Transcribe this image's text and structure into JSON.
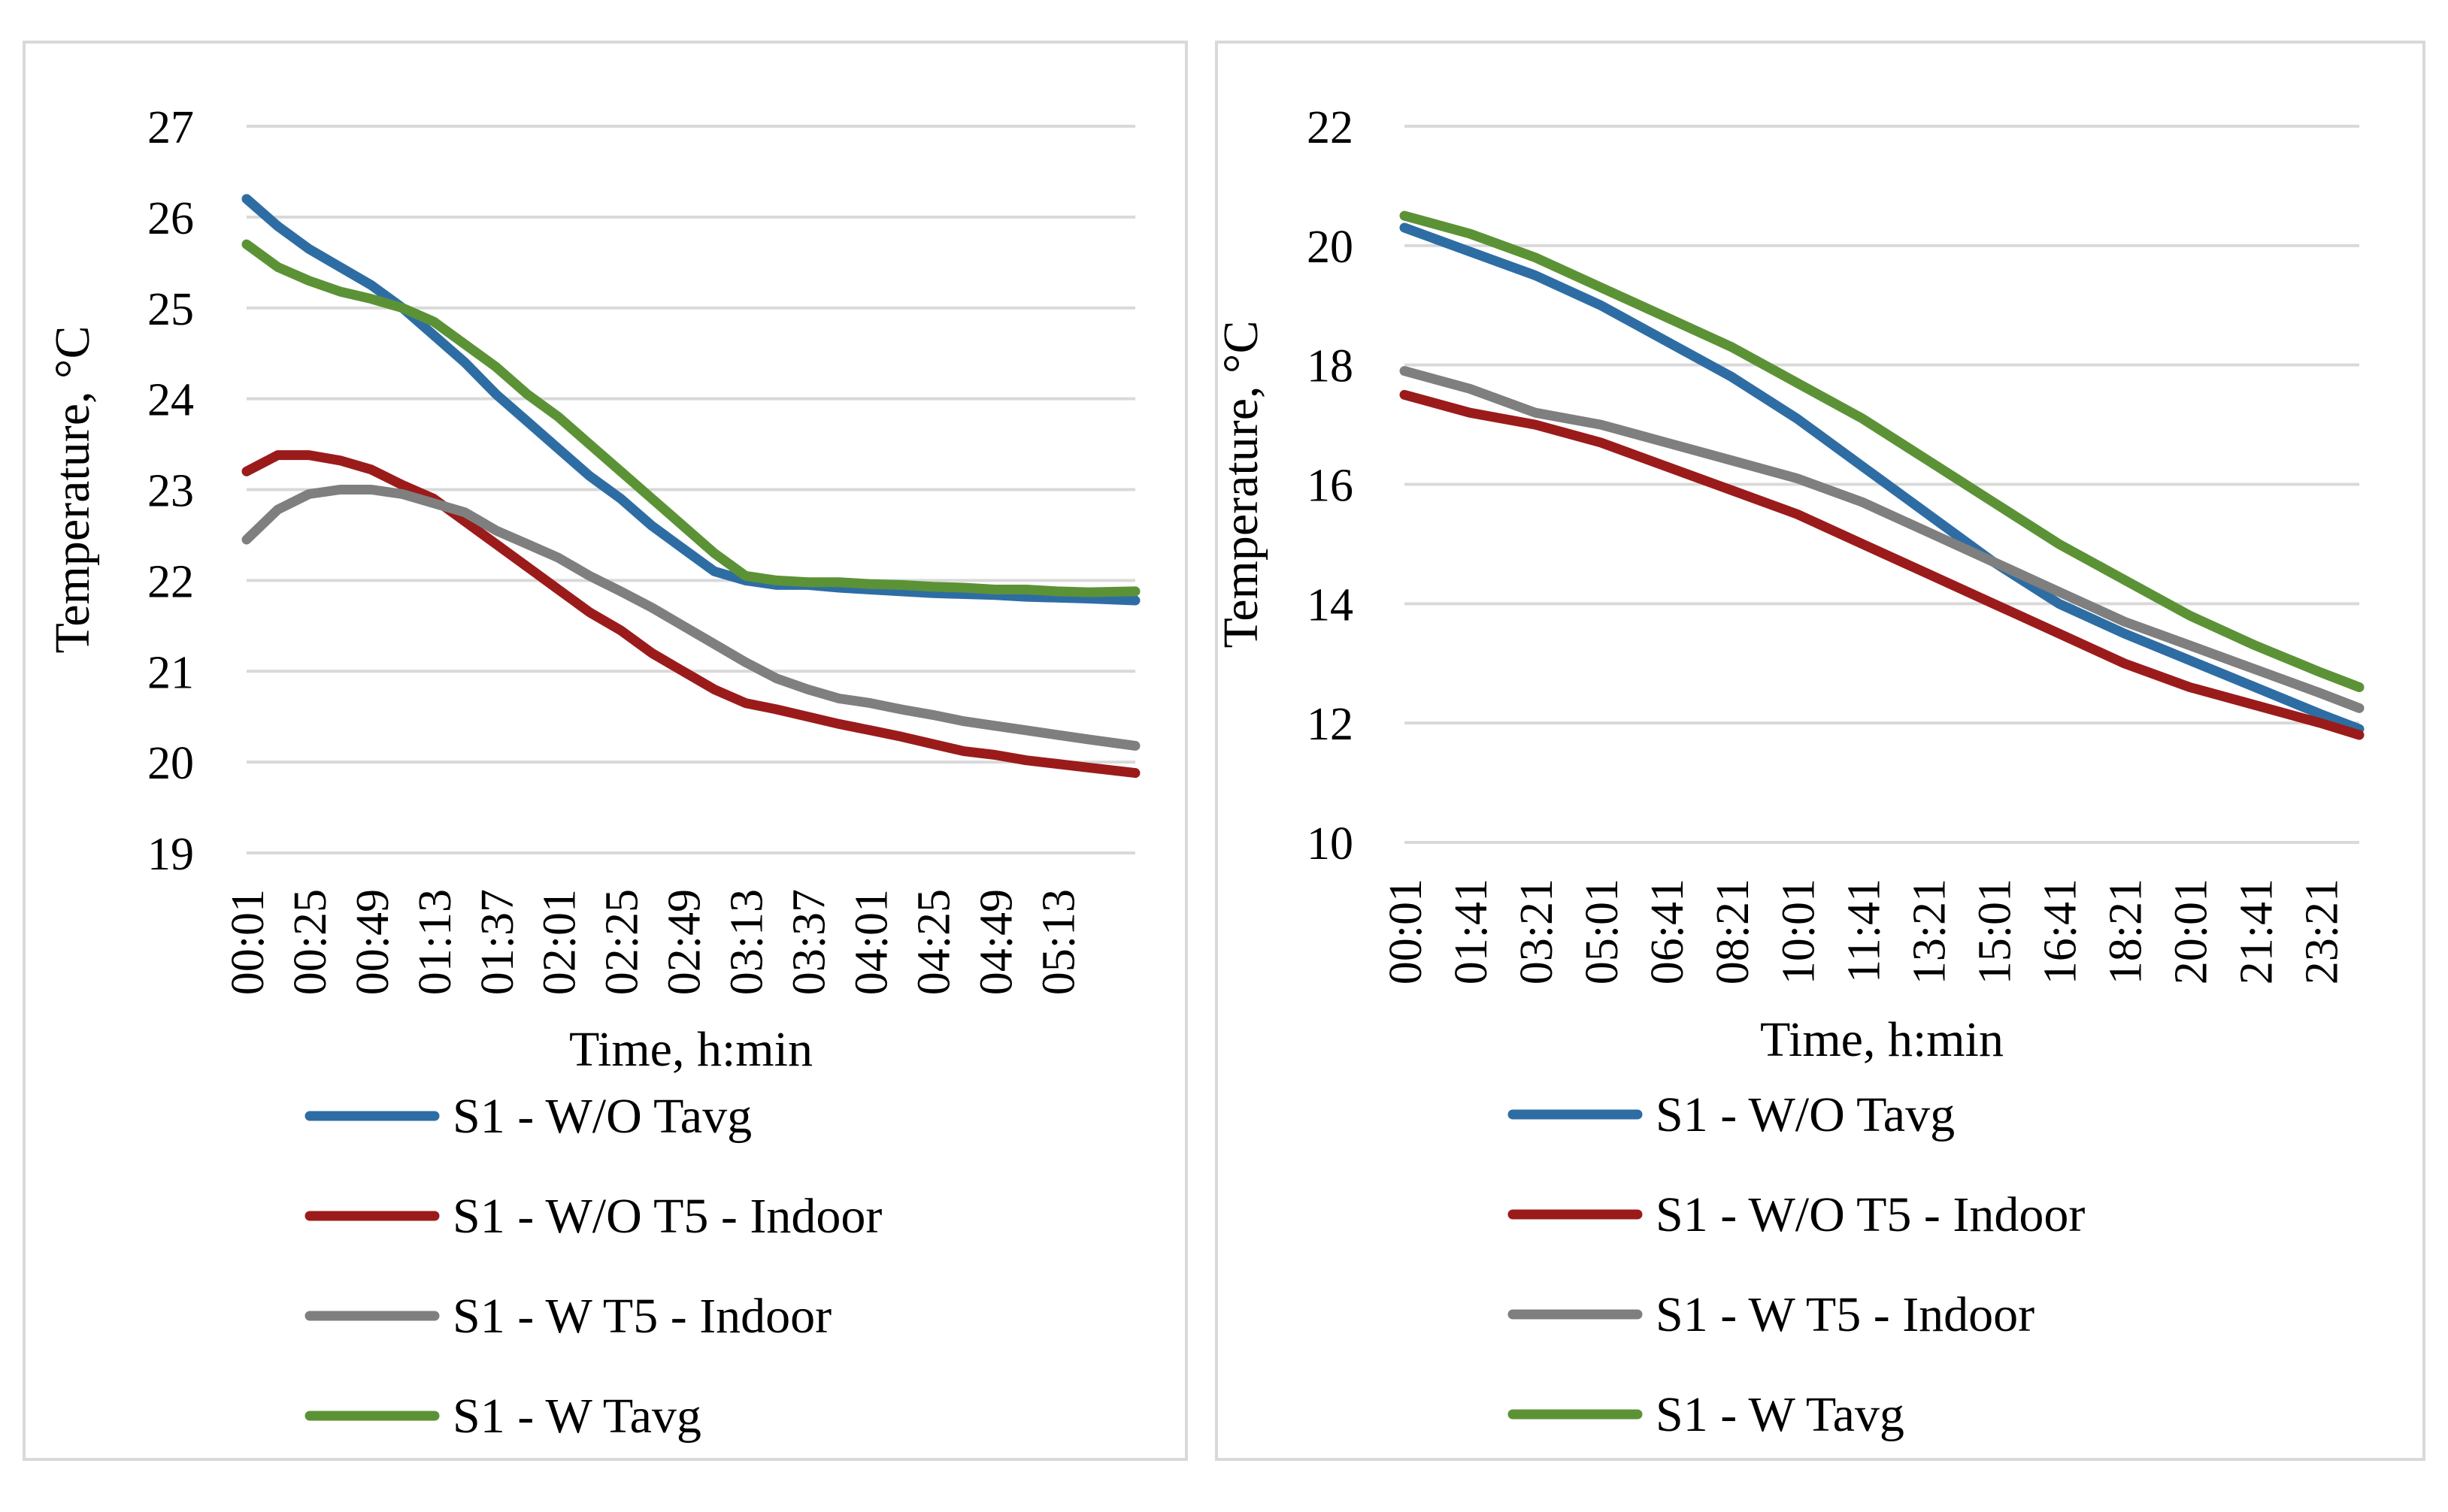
{
  "colors": {
    "grid": "#d9d9d9",
    "frame": "#d9d9d9",
    "series": [
      "#2e6da4",
      "#9b1b1b",
      "#7f7f7f",
      "#5c9236"
    ]
  },
  "chart_data": [
    {
      "type": "line",
      "title": "",
      "xlabel": "Time, h:min",
      "ylabel": "Temperature, °C",
      "ylim": [
        19,
        27
      ],
      "yticks": [
        "19",
        "20",
        "21",
        "22",
        "23",
        "24",
        "25",
        "26",
        "27"
      ],
      "x_tick_labels": [
        "00:01",
        "00:25",
        "00:49",
        "01:13",
        "01:37",
        "02:01",
        "02:25",
        "02:49",
        "03:13",
        "03:37",
        "04:01",
        "04:25",
        "04:49",
        "05:13"
      ],
      "x_range_minutes": [
        1,
        343
      ],
      "grid": "horizontal",
      "legend_position": "bottom",
      "series": [
        {
          "name": "S1 - W/O Tavg",
          "x": [
            "00:01",
            "00:13",
            "00:25",
            "00:37",
            "00:49",
            "01:01",
            "01:13",
            "01:25",
            "01:37",
            "01:49",
            "02:01",
            "02:13",
            "02:25",
            "02:37",
            "02:49",
            "03:01",
            "03:13",
            "03:25",
            "03:37",
            "03:49",
            "04:01",
            "04:13",
            "04:25",
            "04:37",
            "04:49",
            "05:01",
            "05:13",
            "05:25",
            "05:43"
          ],
          "values": [
            26.2,
            25.9,
            25.65,
            25.45,
            25.25,
            25.0,
            24.7,
            24.4,
            24.05,
            23.75,
            23.45,
            23.15,
            22.9,
            22.6,
            22.35,
            22.1,
            22.0,
            21.95,
            21.95,
            21.92,
            21.9,
            21.88,
            21.86,
            21.85,
            21.84,
            21.82,
            21.81,
            21.8,
            21.78
          ]
        },
        {
          "name": "S1 - W/O T5 - Indoor",
          "x": [
            "00:01",
            "00:13",
            "00:25",
            "00:37",
            "00:49",
            "01:01",
            "01:13",
            "01:25",
            "01:37",
            "01:49",
            "02:01",
            "02:13",
            "02:25",
            "02:37",
            "02:49",
            "03:01",
            "03:13",
            "03:25",
            "03:37",
            "03:49",
            "04:01",
            "04:13",
            "04:25",
            "04:37",
            "04:49",
            "05:01",
            "05:13",
            "05:25",
            "05:43"
          ],
          "values": [
            23.2,
            23.38,
            23.38,
            23.32,
            23.22,
            23.05,
            22.9,
            22.65,
            22.4,
            22.15,
            21.9,
            21.65,
            21.45,
            21.2,
            21.0,
            20.8,
            20.65,
            20.58,
            20.5,
            20.42,
            20.35,
            20.28,
            20.2,
            20.12,
            20.08,
            20.02,
            19.98,
            19.94,
            19.88
          ]
        },
        {
          "name": "S1 - W T5 - Indoor",
          "x": [
            "00:01",
            "00:13",
            "00:25",
            "00:37",
            "00:49",
            "01:01",
            "01:13",
            "01:25",
            "01:37",
            "01:49",
            "02:01",
            "02:13",
            "02:25",
            "02:37",
            "02:49",
            "03:01",
            "03:13",
            "03:25",
            "03:37",
            "03:49",
            "04:01",
            "04:13",
            "04:25",
            "04:37",
            "04:49",
            "05:01",
            "05:13",
            "05:25",
            "05:43"
          ],
          "values": [
            22.45,
            22.78,
            22.95,
            23.0,
            23.0,
            22.95,
            22.85,
            22.75,
            22.55,
            22.4,
            22.25,
            22.05,
            21.88,
            21.7,
            21.5,
            21.3,
            21.1,
            20.92,
            20.8,
            20.7,
            20.65,
            20.58,
            20.52,
            20.45,
            20.4,
            20.35,
            20.3,
            20.25,
            20.18
          ]
        },
        {
          "name": "S1 - W Tavg",
          "x": [
            "00:01",
            "00:13",
            "00:25",
            "00:37",
            "00:49",
            "01:01",
            "01:13",
            "01:25",
            "01:37",
            "01:49",
            "02:01",
            "02:13",
            "02:25",
            "02:37",
            "02:49",
            "03:01",
            "03:13",
            "03:25",
            "03:37",
            "03:49",
            "04:01",
            "04:13",
            "04:25",
            "04:37",
            "04:49",
            "05:01",
            "05:13",
            "05:25",
            "05:43"
          ],
          "values": [
            25.7,
            25.45,
            25.3,
            25.18,
            25.1,
            25.0,
            24.85,
            24.6,
            24.35,
            24.05,
            23.8,
            23.5,
            23.2,
            22.9,
            22.6,
            22.3,
            22.05,
            22.0,
            21.98,
            21.98,
            21.96,
            21.95,
            21.93,
            21.92,
            21.9,
            21.9,
            21.88,
            21.87,
            21.88
          ]
        }
      ]
    },
    {
      "type": "line",
      "title": "",
      "xlabel": "Time, h:min",
      "ylabel": "Temperature, °C",
      "ylim": [
        10,
        22
      ],
      "yticks": [
        "10",
        "12",
        "14",
        "16",
        "18",
        "20",
        "22"
      ],
      "x_tick_labels": [
        "00:01",
        "01:41",
        "03:21",
        "05:01",
        "06:41",
        "08:21",
        "10:01",
        "11:41",
        "13:21",
        "15:01",
        "16:41",
        "18:21",
        "20:01",
        "21:41",
        "23:21"
      ],
      "x_range_minutes": [
        1,
        1460
      ],
      "grid": "horizontal",
      "legend_position": "bottom",
      "series": [
        {
          "name": "S1 - W/O Tavg",
          "x": [
            "00:01",
            "01:41",
            "03:21",
            "05:01",
            "06:41",
            "08:21",
            "10:01",
            "11:41",
            "13:21",
            "15:01",
            "16:41",
            "18:21",
            "20:01",
            "21:41",
            "23:21",
            "24:20"
          ],
          "values": [
            20.3,
            19.9,
            19.5,
            19.0,
            18.4,
            17.8,
            17.1,
            16.3,
            15.5,
            14.7,
            14.0,
            13.5,
            13.05,
            12.6,
            12.15,
            11.9
          ]
        },
        {
          "name": "S1 - W/O T5 - Indoor",
          "x": [
            "00:01",
            "01:41",
            "03:21",
            "05:01",
            "06:41",
            "08:21",
            "10:01",
            "11:41",
            "13:21",
            "15:01",
            "16:41",
            "18:21",
            "20:01",
            "21:41",
            "23:21",
            "24:20"
          ],
          "values": [
            17.5,
            17.2,
            17.0,
            16.7,
            16.3,
            15.9,
            15.5,
            15.0,
            14.5,
            14.0,
            13.5,
            13.0,
            12.6,
            12.3,
            12.0,
            11.8
          ]
        },
        {
          "name": "S1 - W T5 - Indoor",
          "x": [
            "00:01",
            "01:41",
            "03:21",
            "05:01",
            "06:41",
            "08:21",
            "10:01",
            "11:41",
            "13:21",
            "15:01",
            "16:41",
            "18:21",
            "20:01",
            "21:41",
            "23:21",
            "24:20"
          ],
          "values": [
            17.9,
            17.6,
            17.2,
            17.0,
            16.7,
            16.4,
            16.1,
            15.7,
            15.2,
            14.7,
            14.2,
            13.7,
            13.3,
            12.9,
            12.5,
            12.25
          ]
        },
        {
          "name": "S1 - W Tavg",
          "x": [
            "00:01",
            "01:41",
            "03:21",
            "05:01",
            "06:41",
            "08:21",
            "10:01",
            "11:41",
            "13:21",
            "15:01",
            "16:41",
            "18:21",
            "20:01",
            "21:41",
            "23:21",
            "24:20"
          ],
          "values": [
            20.5,
            20.2,
            19.8,
            19.3,
            18.8,
            18.3,
            17.7,
            17.1,
            16.4,
            15.7,
            15.0,
            14.4,
            13.8,
            13.3,
            12.85,
            12.6
          ]
        }
      ]
    }
  ]
}
